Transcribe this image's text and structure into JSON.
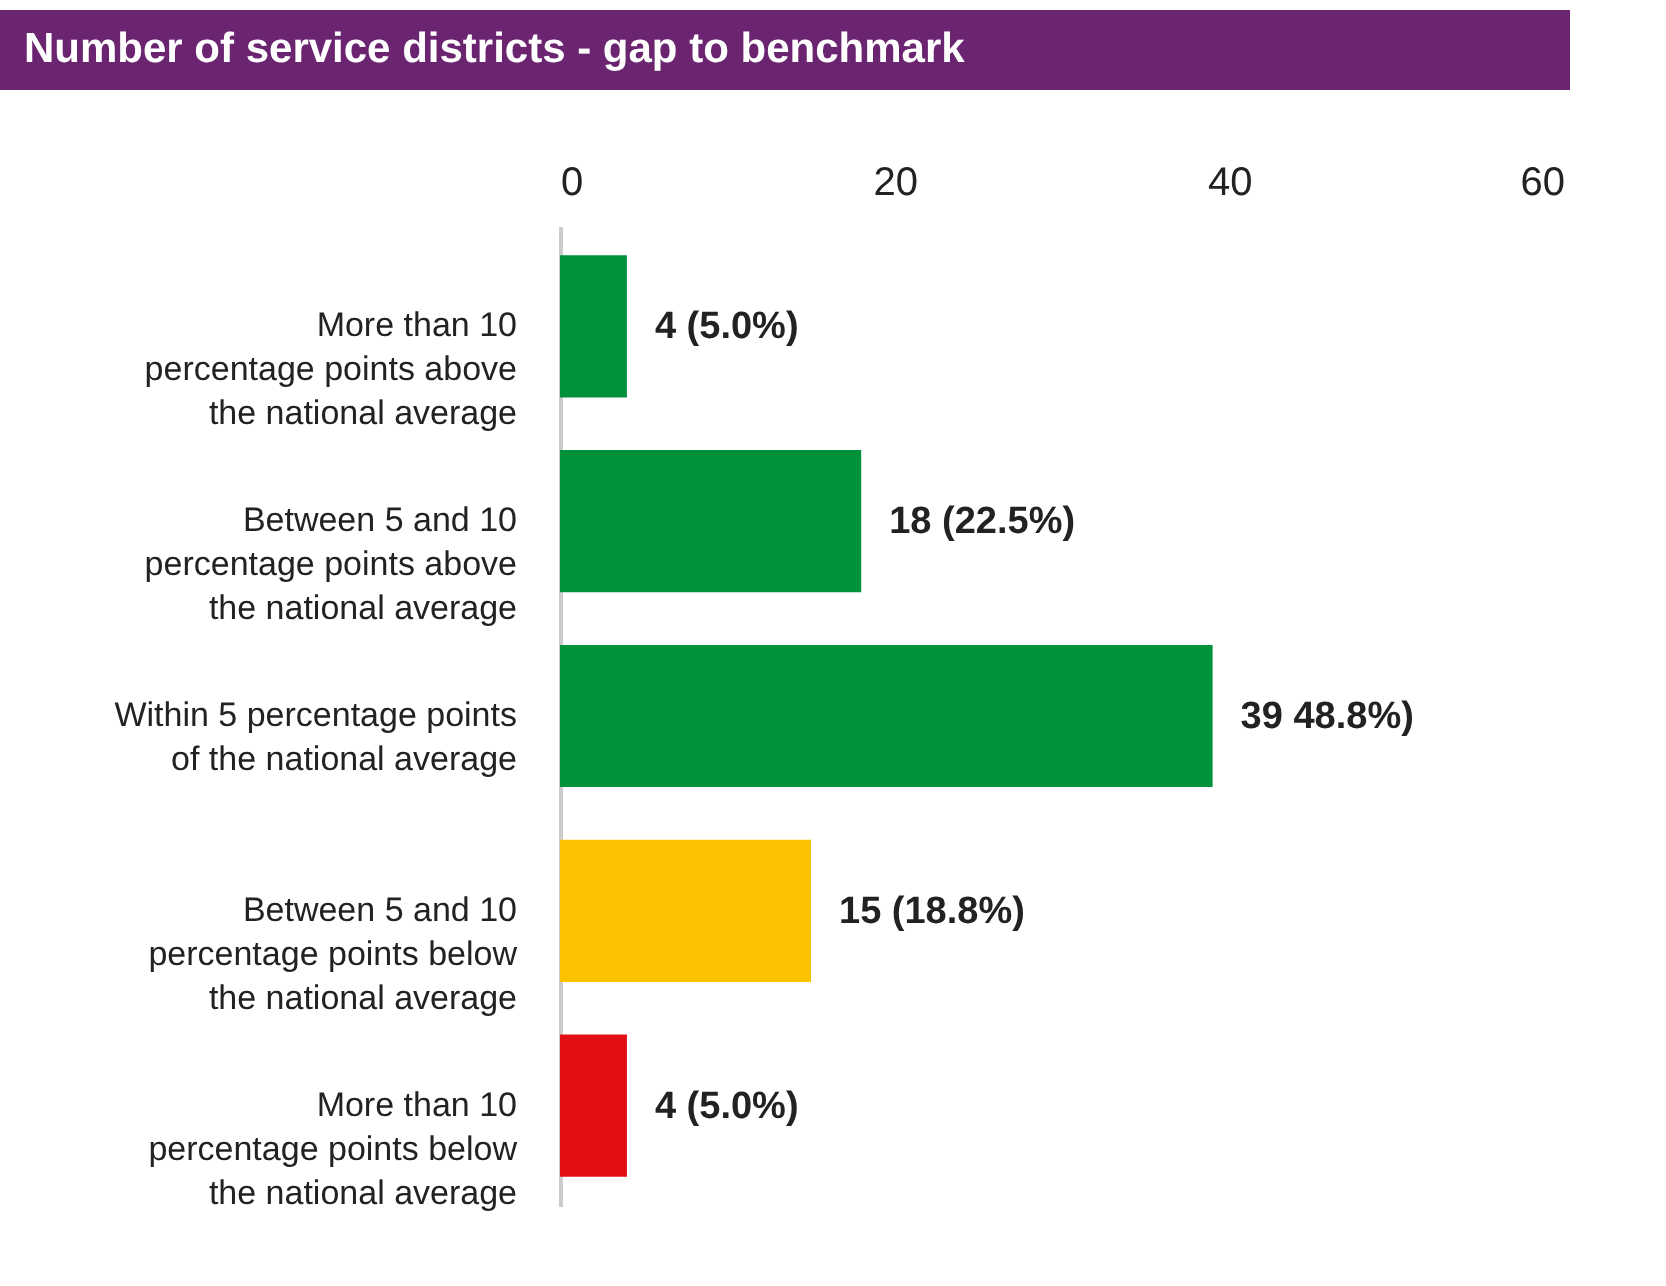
{
  "chart_data": {
    "type": "bar",
    "orientation": "horizontal",
    "title": "Number of service districts - gap to benchmark",
    "categories": [
      "More than 10\npercentage points above\nthe national average",
      "Between 5 and 10\npercentage points above\nthe national average",
      "Within 5 percentage points\nof the national average",
      "Between 5 and 10\npercentage points below\nthe national average",
      "More than 10\npercentage points below\nthe national average"
    ],
    "values": [
      4,
      18,
      39,
      15,
      4
    ],
    "colors": [
      "#00913a",
      "#00913a",
      "#00913a",
      "#fbc200",
      "#e30e13"
    ],
    "value_labels": [
      "4 (5.0%)",
      "18 (22.5%)",
      "39 48.8%)",
      "15 (18.8%)",
      "4 (5.0%)"
    ],
    "xlim": [
      0,
      60
    ],
    "xticks": [
      0,
      20,
      40,
      60
    ],
    "grid": false
  }
}
